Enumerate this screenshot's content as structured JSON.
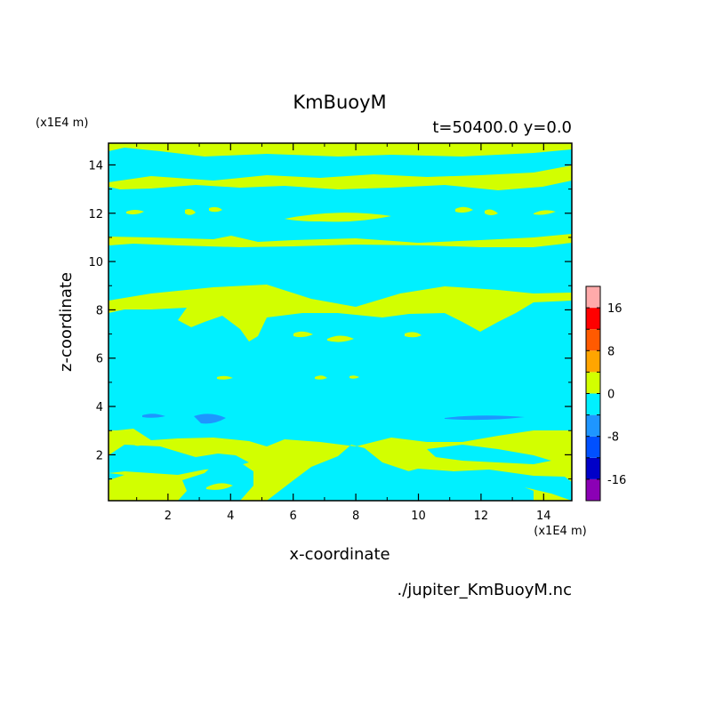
{
  "chart_data": {
    "type": "heatmap",
    "title": "KmBuoyM",
    "subtitle": "t=50400.0 y=0.0",
    "xlabel": "x-coordinate",
    "ylabel": "z-coordinate",
    "x_unit": "(x1E4 m)",
    "y_unit": "(x1E4 m)",
    "xlim": [
      0.1,
      14.9
    ],
    "ylim": [
      0.1,
      14.9
    ],
    "x_ticks": [
      2,
      4,
      6,
      8,
      10,
      12,
      14
    ],
    "y_ticks": [
      2,
      4,
      6,
      8,
      10,
      12,
      14
    ],
    "source": "./jupiter_KmBuoyM.nc",
    "colorbar": {
      "levels": [
        -20,
        -16,
        -12,
        -8,
        -4,
        0,
        4,
        8,
        12,
        16,
        20
      ],
      "tick_labels": [
        "16",
        "8",
        "0",
        "-8",
        "-16"
      ],
      "tick_values": [
        16,
        8,
        0,
        -8,
        -16
      ],
      "colors": [
        "#8b00b5",
        "#0000c8",
        "#0050ff",
        "#1e96ff",
        "#00f0ff",
        "#d2ff00",
        "#ffa500",
        "#ff5a00",
        "#ff0000",
        "#ffaaaa"
      ]
    },
    "background_level": "#00f0ff",
    "regions": [
      {
        "level": "#d2ff00",
        "x": [
          0.1,
          14.9
        ],
        "z": [
          14.3,
          14.9
        ]
      },
      {
        "level": "#d2ff00",
        "x": [
          0.1,
          14.9
        ],
        "z": [
          13.1,
          13.7
        ]
      },
      {
        "level": "#d2ff00",
        "x": [
          0.1,
          14.9
        ],
        "z": [
          10.5,
          11.0
        ]
      },
      {
        "level": "#d2ff00",
        "x": [
          0.1,
          14.9
        ],
        "z": [
          7.9,
          9.1
        ]
      },
      {
        "level": "#d2ff00",
        "x": [
          6.0,
          10.0
        ],
        "z": [
          11.7,
          12.2
        ]
      },
      {
        "level": "#d2ff00",
        "x": [
          0.1,
          14.9
        ],
        "z": [
          0.1,
          3.0
        ]
      },
      {
        "level": "#1e96ff",
        "x": [
          2.8,
          4.2
        ],
        "z": [
          3.3,
          3.6
        ]
      },
      {
        "level": "#1e96ff",
        "x": [
          10.7,
          13.5
        ],
        "z": [
          3.4,
          3.6
        ]
      }
    ]
  }
}
